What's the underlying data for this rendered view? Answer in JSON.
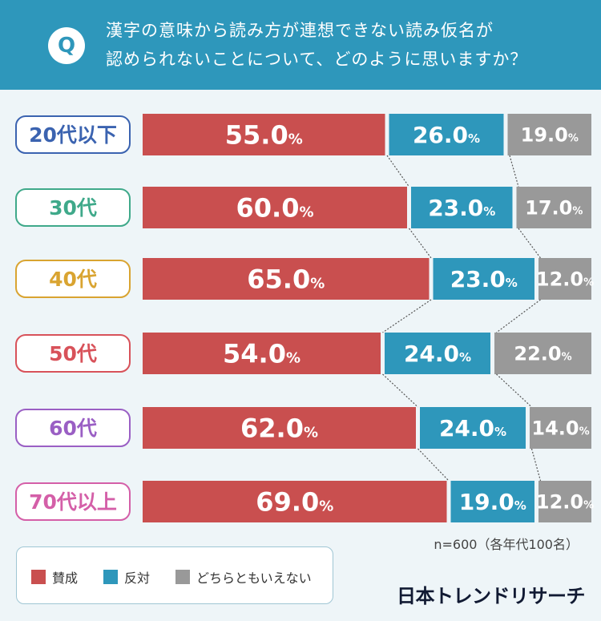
{
  "header": {
    "badge": "Q",
    "question_line1": "漢字の意味から読み方が連想できない読み仮名が",
    "question_line2": "認められないことについて、どのように思いますか？"
  },
  "colors": {
    "header_bg": "#2e97bb",
    "agree": "#c94f4f",
    "oppose": "#2e97bb",
    "neutral": "#999999"
  },
  "chart_data": {
    "type": "bar",
    "stacked": true,
    "orientation": "horizontal",
    "unit": "%",
    "categories": [
      "20代以下",
      "30代",
      "40代",
      "50代",
      "60代",
      "70代以上"
    ],
    "category_colors": [
      "#3b63b0",
      "#3fa98a",
      "#d9a431",
      "#d8525a",
      "#9a5fc4",
      "#d45fa8"
    ],
    "series": [
      {
        "name": "賛成",
        "color": "#c94f4f",
        "values": [
          55.0,
          60.0,
          65.0,
          54.0,
          62.0,
          69.0
        ]
      },
      {
        "name": "反対",
        "color": "#2e97bb",
        "values": [
          26.0,
          23.0,
          23.0,
          24.0,
          24.0,
          19.0
        ]
      },
      {
        "name": "どちらともいえない",
        "color": "#999999",
        "values": [
          19.0,
          17.0,
          12.0,
          22.0,
          14.0,
          12.0
        ]
      }
    ],
    "xlim": [
      0,
      100
    ],
    "note": "n=600（各年代100名）"
  },
  "legend": [
    {
      "label": "賛成",
      "color": "#c94f4f"
    },
    {
      "label": "反対",
      "color": "#2e97bb"
    },
    {
      "label": "どちらともいえない",
      "color": "#999999"
    }
  ],
  "brand": "日本トレンドリサーチ"
}
